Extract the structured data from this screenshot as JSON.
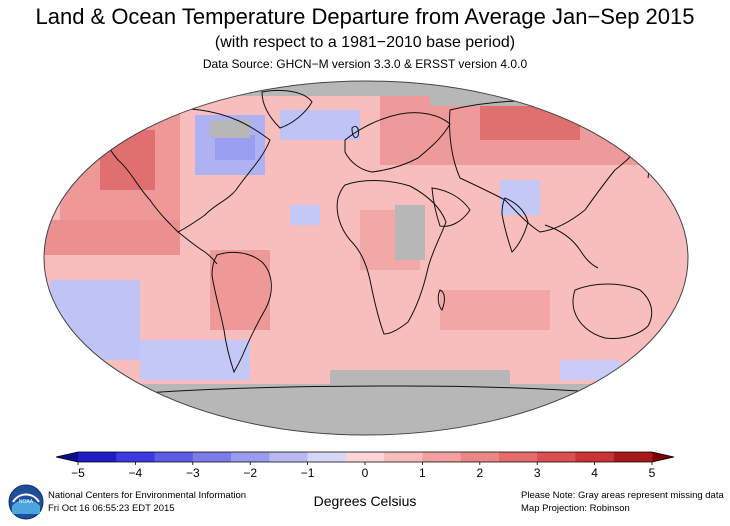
{
  "title": "Land & Ocean Temperature Departure from Average Jan−Sep 2015",
  "subtitle": "(with respect to a 1981−2010 base period)",
  "source": "Data Source: GHCN−M version 3.3.0 & ERSST version 4.0.0",
  "legend": {
    "title": "Degrees Celsius",
    "ticks": [
      "−5",
      "−4",
      "−3",
      "−2",
      "−1",
      "0",
      "1",
      "2",
      "3",
      "4",
      "5"
    ],
    "colors": [
      "#0c0c8f",
      "#1d1dc4",
      "#3a3ae0",
      "#5c5ce6",
      "#7c7ce8",
      "#9c9ced",
      "#b9b9f2",
      "#d6d6f8",
      "#fcd6d6",
      "#f8bcbc",
      "#f2a0a0",
      "#ec8686",
      "#e46c6c",
      "#d95050",
      "#c83434",
      "#a81a1a",
      "#7a0000"
    ]
  },
  "colors": {
    "missing": "#b7b7b7",
    "warm_light": "#f8bdbd",
    "warm_mid": "#ef9898",
    "warm_strong": "#e07070",
    "cool_light": "#bfc3f5",
    "cool_mid": "#9a9ef0"
  },
  "footer": {
    "org": "National Centers for Environmental Information",
    "date": "Fri Oct 16 06:55:23 EDT 2015",
    "note": "Please Note: Gray areas represent missing data",
    "projection": "Map Projection: Robinson"
  },
  "logo": {
    "text": "NOAA"
  }
}
